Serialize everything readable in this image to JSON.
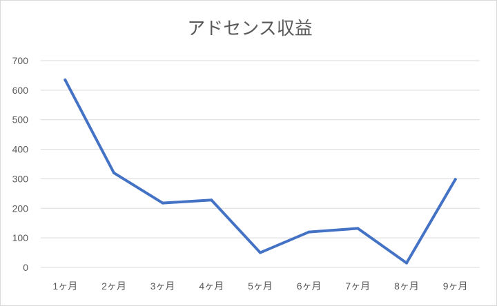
{
  "chart_data": {
    "type": "line",
    "title": "アドセンス収益",
    "xlabel": "",
    "ylabel": "",
    "categories": [
      "1ヶ月",
      "2ヶ月",
      "3ヶ月",
      "4ヶ月",
      "5ヶ月",
      "6ヶ月",
      "7ヶ月",
      "8ヶ月",
      "9ヶ月"
    ],
    "series": [
      {
        "values": [
          635,
          320,
          218,
          228,
          50,
          120,
          132,
          15,
          298
        ],
        "color": "#4472C4"
      }
    ],
    "ylim": [
      0,
      700
    ],
    "yticks": [
      0,
      100,
      200,
      300,
      400,
      500,
      600,
      700
    ],
    "grid": true,
    "legend": "none"
  }
}
